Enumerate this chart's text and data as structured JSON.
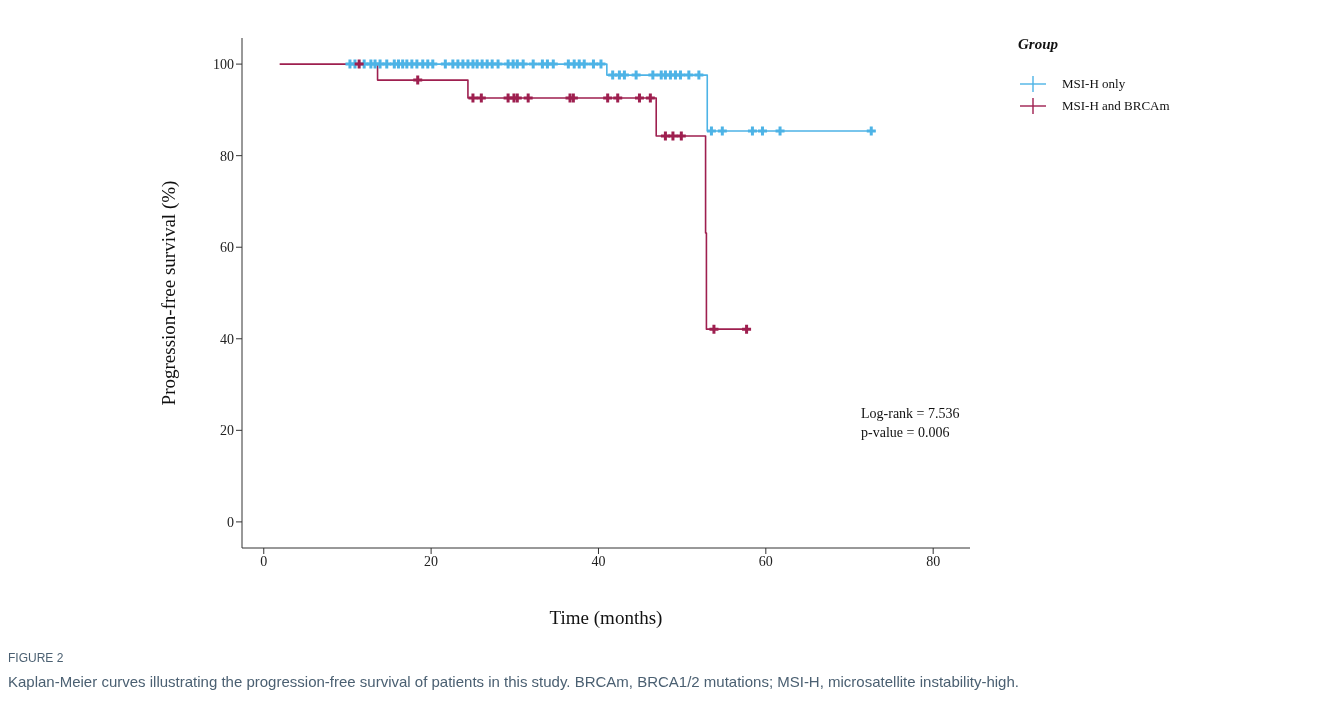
{
  "chart_data": {
    "type": "step",
    "xlabel": "Time (months)",
    "ylabel": "Progression-free survival (%)",
    "legend_title": "Group",
    "legend": "right",
    "xlim": [
      -2.6,
      84.4
    ],
    "ylim": [
      -5.7,
      105.7
    ],
    "xticks": [
      0,
      20,
      40,
      60,
      80
    ],
    "yticks": [
      0,
      20,
      40,
      60,
      80,
      100
    ],
    "series": [
      {
        "name": "MSI-H only",
        "type": "step",
        "color": "#4db3e6",
        "x": [
          10.3,
          41.0,
          41.0,
          53.0,
          53.0,
          73.1
        ],
        "values": [
          100,
          100,
          97.6,
          97.6,
          85.4,
          85.4
        ]
      },
      {
        "name": "MSI-H and BRCAm",
        "type": "step",
        "color": "#9e1f4f",
        "x": [
          1.9,
          13.6,
          13.6,
          24.4,
          24.4,
          46.9,
          46.9,
          52.8,
          52.8,
          52.9,
          52.9,
          57.9
        ],
        "values": [
          100,
          100,
          96.5,
          96.5,
          92.6,
          92.6,
          84.3,
          84.3,
          63.1,
          63.1,
          42.1,
          42.1
        ]
      },
      {
        "type": "scatter",
        "marker": "cross",
        "color": "#4db3e6",
        "x": [
          10.3,
          10.9,
          11.5,
          12.0,
          12.8,
          13.3,
          13.9,
          14.7,
          15.6,
          16.1,
          16.6,
          17.1,
          17.7,
          18.3,
          19.0,
          19.6,
          20.2,
          21.7,
          22.6,
          23.2,
          23.8,
          24.4,
          25.0,
          25.5,
          26.1,
          26.7,
          27.3,
          28.0,
          29.2,
          29.8,
          30.3,
          31.0,
          32.2,
          33.3,
          33.9,
          34.6,
          36.4,
          37.1,
          37.7,
          38.3,
          39.4,
          40.3,
          41.7,
          42.5,
          43.1,
          44.5,
          46.5,
          47.5,
          48.0,
          48.6,
          49.2,
          49.8,
          50.8,
          52.0,
          53.5,
          54.8,
          58.4,
          59.6,
          61.7,
          72.6
        ],
        "values": [
          100,
          100,
          null,
          100,
          100,
          100,
          100,
          100,
          100,
          100,
          100,
          100,
          100,
          100,
          100,
          100,
          100,
          100,
          100,
          100,
          100,
          100,
          100,
          100,
          100,
          100,
          100,
          100,
          100,
          100,
          100,
          100,
          100,
          100,
          100,
          100,
          100,
          100,
          100,
          100,
          100,
          100,
          97.6,
          97.6,
          97.6,
          97.6,
          97.6,
          97.6,
          97.6,
          97.6,
          97.6,
          97.6,
          97.6,
          97.6,
          85.4,
          85.4,
          85.4,
          85.4,
          85.4,
          85.4
        ]
      },
      {
        "type": "scatter",
        "marker": "cross",
        "color": "#9e1f4f",
        "x": [
          11.4,
          18.4,
          25.0,
          26.0,
          29.2,
          29.9,
          30.3,
          31.6,
          36.6,
          37.0,
          41.1,
          42.3,
          44.9,
          46.2,
          48.0,
          48.7,
          48.9,
          49.9,
          53.8,
          57.7
        ],
        "values": [
          100,
          96.5,
          92.6,
          92.6,
          92.6,
          92.6,
          92.6,
          92.6,
          92.6,
          92.6,
          92.6,
          92.6,
          92.6,
          92.6,
          84.3,
          null,
          84.3,
          84.3,
          42.1,
          42.1
        ]
      }
    ],
    "annotations": [
      "Log-rank = 7.536",
      "p-value = 0.006",
      "FIGURE 2",
      "Kaplan-Meier curves illustrating the progression-free survival of patients in this study. BRCAm, BRCA1/2 mutations; MSI-H, microsatellite instability-high."
    ]
  }
}
